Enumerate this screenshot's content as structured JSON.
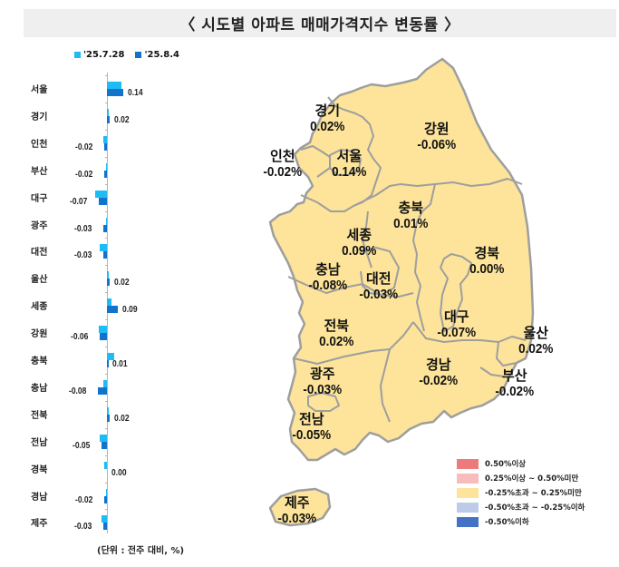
{
  "title": "〈 시도별 아파트 매매가격지수 변동률 〉",
  "legend": [
    {
      "label": "'25.7.28",
      "color": "#1ebcf4"
    },
    {
      "label": "'25.8.4",
      "color": "#1273cd"
    }
  ],
  "unit_note": "(단위 : 전주 대비, %)",
  "chart_data": {
    "type": "bar",
    "orientation": "horizontal",
    "title": "시도별 아파트 매매가격지수 변동률",
    "xlabel": "",
    "ylabel": "",
    "unit": "전주 대비, %",
    "categories": [
      "서울",
      "경기",
      "인천",
      "부산",
      "대구",
      "광주",
      "대전",
      "울산",
      "세종",
      "강원",
      "충북",
      "충남",
      "전북",
      "전남",
      "경북",
      "경남",
      "제주"
    ],
    "series": [
      {
        "name": "'25.7.28",
        "color": "#1ebcf4",
        "values": [
          0.12,
          0.01,
          -0.03,
          -0.01,
          -0.1,
          -0.01,
          -0.06,
          0.01,
          0.04,
          -0.07,
          0.06,
          -0.03,
          0.01,
          -0.06,
          -0.02,
          -0.01,
          -0.05
        ]
      },
      {
        "name": "'25.8.4",
        "color": "#1273cd",
        "values": [
          0.14,
          0.02,
          -0.02,
          -0.02,
          -0.07,
          -0.03,
          -0.03,
          0.02,
          0.09,
          -0.06,
          0.01,
          -0.08,
          0.02,
          -0.05,
          0.0,
          -0.02,
          -0.03
        ]
      }
    ],
    "data_labels": [
      "0.14",
      "0.02",
      "-0.02",
      "-0.02",
      "-0.07",
      "-0.03",
      "-0.03",
      "0.02",
      "0.09",
      "-0.06",
      "0.01",
      "-0.08",
      "0.02",
      "-0.05",
      "0.00",
      "-0.02",
      "-0.03"
    ],
    "legend_position": "top"
  },
  "map": {
    "fill_color": "#fde49a",
    "border_color": "#9e9e9e",
    "regions": [
      {
        "name": "경기",
        "value": "0.02%"
      },
      {
        "name": "인천",
        "value": "-0.02%"
      },
      {
        "name": "서울",
        "value": "0.14%"
      },
      {
        "name": "강원",
        "value": "-0.06%"
      },
      {
        "name": "충북",
        "value": "0.01%"
      },
      {
        "name": "세종",
        "value": "0.09%"
      },
      {
        "name": "충남",
        "value": "-0.08%"
      },
      {
        "name": "대전",
        "value": "-0.03%"
      },
      {
        "name": "경북",
        "value": "0.00%"
      },
      {
        "name": "전북",
        "value": "0.02%"
      },
      {
        "name": "대구",
        "value": "-0.07%"
      },
      {
        "name": "울산",
        "value": "0.02%"
      },
      {
        "name": "광주",
        "value": "-0.03%"
      },
      {
        "name": "경남",
        "value": "-0.02%"
      },
      {
        "name": "부산",
        "value": "-0.02%"
      },
      {
        "name": "전남",
        "value": "-0.05%"
      },
      {
        "name": "제주",
        "value": "-0.03%"
      }
    ],
    "legend": [
      {
        "label": "0.50%이상",
        "color": "#ee7b7b"
      },
      {
        "label": "0.25%이상 ~ 0.50%미만",
        "color": "#f7bcbc"
      },
      {
        "label": "-0.25%초과 ~ 0.25%미만",
        "color": "#fde49a"
      },
      {
        "label": "-0.50%초과 ~ -0.25%이하",
        "color": "#bccbe8"
      },
      {
        "label": "-0.50%이하",
        "color": "#4472c4"
      }
    ]
  }
}
